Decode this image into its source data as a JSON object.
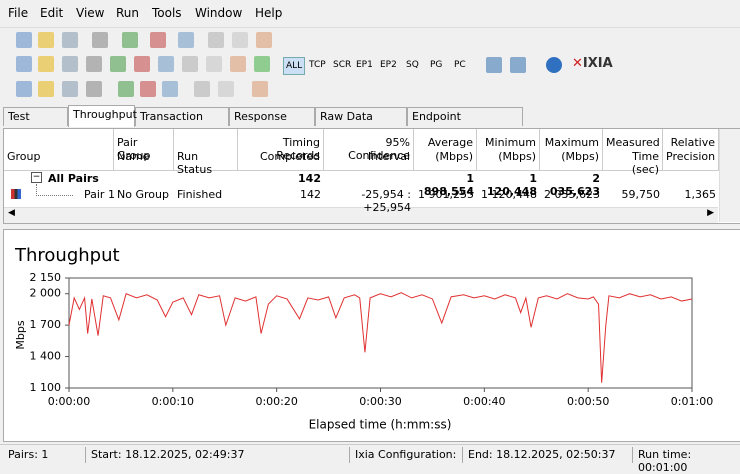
{
  "menu": [
    "File",
    "Edit",
    "View",
    "Run",
    "Tools",
    "Window",
    "Help"
  ],
  "toolbar": {
    "filters": [
      "ALL",
      "TCP",
      "SCR",
      "EP1",
      "EP2",
      "SQ",
      "PG",
      "PC"
    ],
    "logo": "IXIA"
  },
  "tabs": [
    "Test Setup",
    "Throughput",
    "Transaction Rate",
    "Response Time",
    "Raw Data Totals",
    "Endpoint Configuration"
  ],
  "table": {
    "columns": [
      [
        "Group"
      ],
      [
        "Pair Group",
        "Name"
      ],
      [
        "Run Status"
      ],
      [
        "Timing Records",
        "Completed"
      ],
      [
        "95% Confidence",
        "Interval"
      ],
      [
        "Average",
        "(Mbps)"
      ],
      [
        "Minimum",
        "(Mbps)"
      ],
      [
        "Maximum",
        "(Mbps)"
      ],
      [
        "Measured",
        "Time (sec)"
      ],
      [
        "Relative",
        "Precision"
      ]
    ],
    "rows": [
      {
        "group": "All Pairs",
        "records": "142",
        "average": "1 898,554",
        "minimum": "1 120,448",
        "maximum": "2 035,623"
      },
      {
        "group": "Pair 1",
        "pair_group": "No Group",
        "status": "Finished",
        "records": "142",
        "confidence": "-25,954 : +25,954",
        "average": "1 901,255",
        "minimum": "1 120,448",
        "maximum": "2 035,623",
        "time": "59,750",
        "precision": "1,365"
      }
    ]
  },
  "chart_data": {
    "type": "line",
    "title": "Throughput",
    "y_label": "Mbps",
    "x_label": "Elapsed time (h:mm:ss)",
    "color": "#e03030",
    "grid": false,
    "xlim": [
      0,
      60
    ],
    "xticks": [
      {
        "value": 0,
        "label": "0:00:00"
      },
      {
        "value": 10,
        "label": "0:00:10"
      },
      {
        "value": 20,
        "label": "0:00:20"
      },
      {
        "value": 30,
        "label": "0:00:30"
      },
      {
        "value": 40,
        "label": "0:00:40"
      },
      {
        "value": 50,
        "label": "0:00:50"
      },
      {
        "value": 60,
        "label": "0:01:00"
      }
    ],
    "ylim": [
      1100,
      2150
    ],
    "yticks": [
      {
        "value": 1100,
        "label": "1 100"
      },
      {
        "value": 1400,
        "label": "1 400"
      },
      {
        "value": 1700,
        "label": "1 700"
      },
      {
        "value": 2000,
        "label": "2 000"
      },
      {
        "value": 2150,
        "label": "2 150"
      }
    ],
    "x": [
      0,
      0.5,
      1,
      1.5,
      1.8,
      2.2,
      2.8,
      3.3,
      4,
      4.8,
      5.5,
      6.5,
      7.5,
      8.5,
      9.3,
      10,
      11,
      11.8,
      12.5,
      13.5,
      14.5,
      15.1,
      16,
      17,
      18,
      18.5,
      19.2,
      20,
      21,
      22.2,
      23,
      24,
      25,
      25.7,
      26.5,
      27.5,
      28,
      28.5,
      29,
      30,
      31,
      32,
      33,
      34,
      35,
      35.9,
      36.8,
      38,
      39,
      40,
      41,
      42,
      43,
      43.5,
      44,
      44.5,
      45.2,
      46,
      47,
      48,
      49,
      50,
      50.5,
      51,
      51.3,
      51.7,
      52,
      53,
      54,
      55,
      56,
      57,
      58,
      59,
      60
    ],
    "values": [
      1700,
      1960,
      1850,
      1960,
      1620,
      1950,
      1600,
      1980,
      1960,
      1750,
      2000,
      1960,
      1990,
      1940,
      1780,
      1920,
      1960,
      1800,
      1990,
      1960,
      1980,
      1700,
      1960,
      1930,
      1970,
      1620,
      1900,
      1980,
      1950,
      1760,
      1960,
      1940,
      1970,
      1770,
      1960,
      1990,
      1960,
      1440,
      1960,
      2000,
      1970,
      2010,
      1960,
      1990,
      1950,
      1720,
      1970,
      1990,
      1960,
      1980,
      1950,
      1990,
      1960,
      1820,
      1960,
      1680,
      1960,
      1980,
      1950,
      2000,
      1960,
      1950,
      1970,
      1900,
      1150,
      1700,
      1980,
      1960,
      2000,
      1970,
      1990,
      1950,
      1970,
      1930,
      1950
    ]
  },
  "status": [
    "Pairs: 1",
    "Start: 18.12.2025, 02:49:37",
    "Ixia Configuration:",
    "End: 18.12.2025, 02:50:37",
    "Run time: 00:01:00"
  ]
}
